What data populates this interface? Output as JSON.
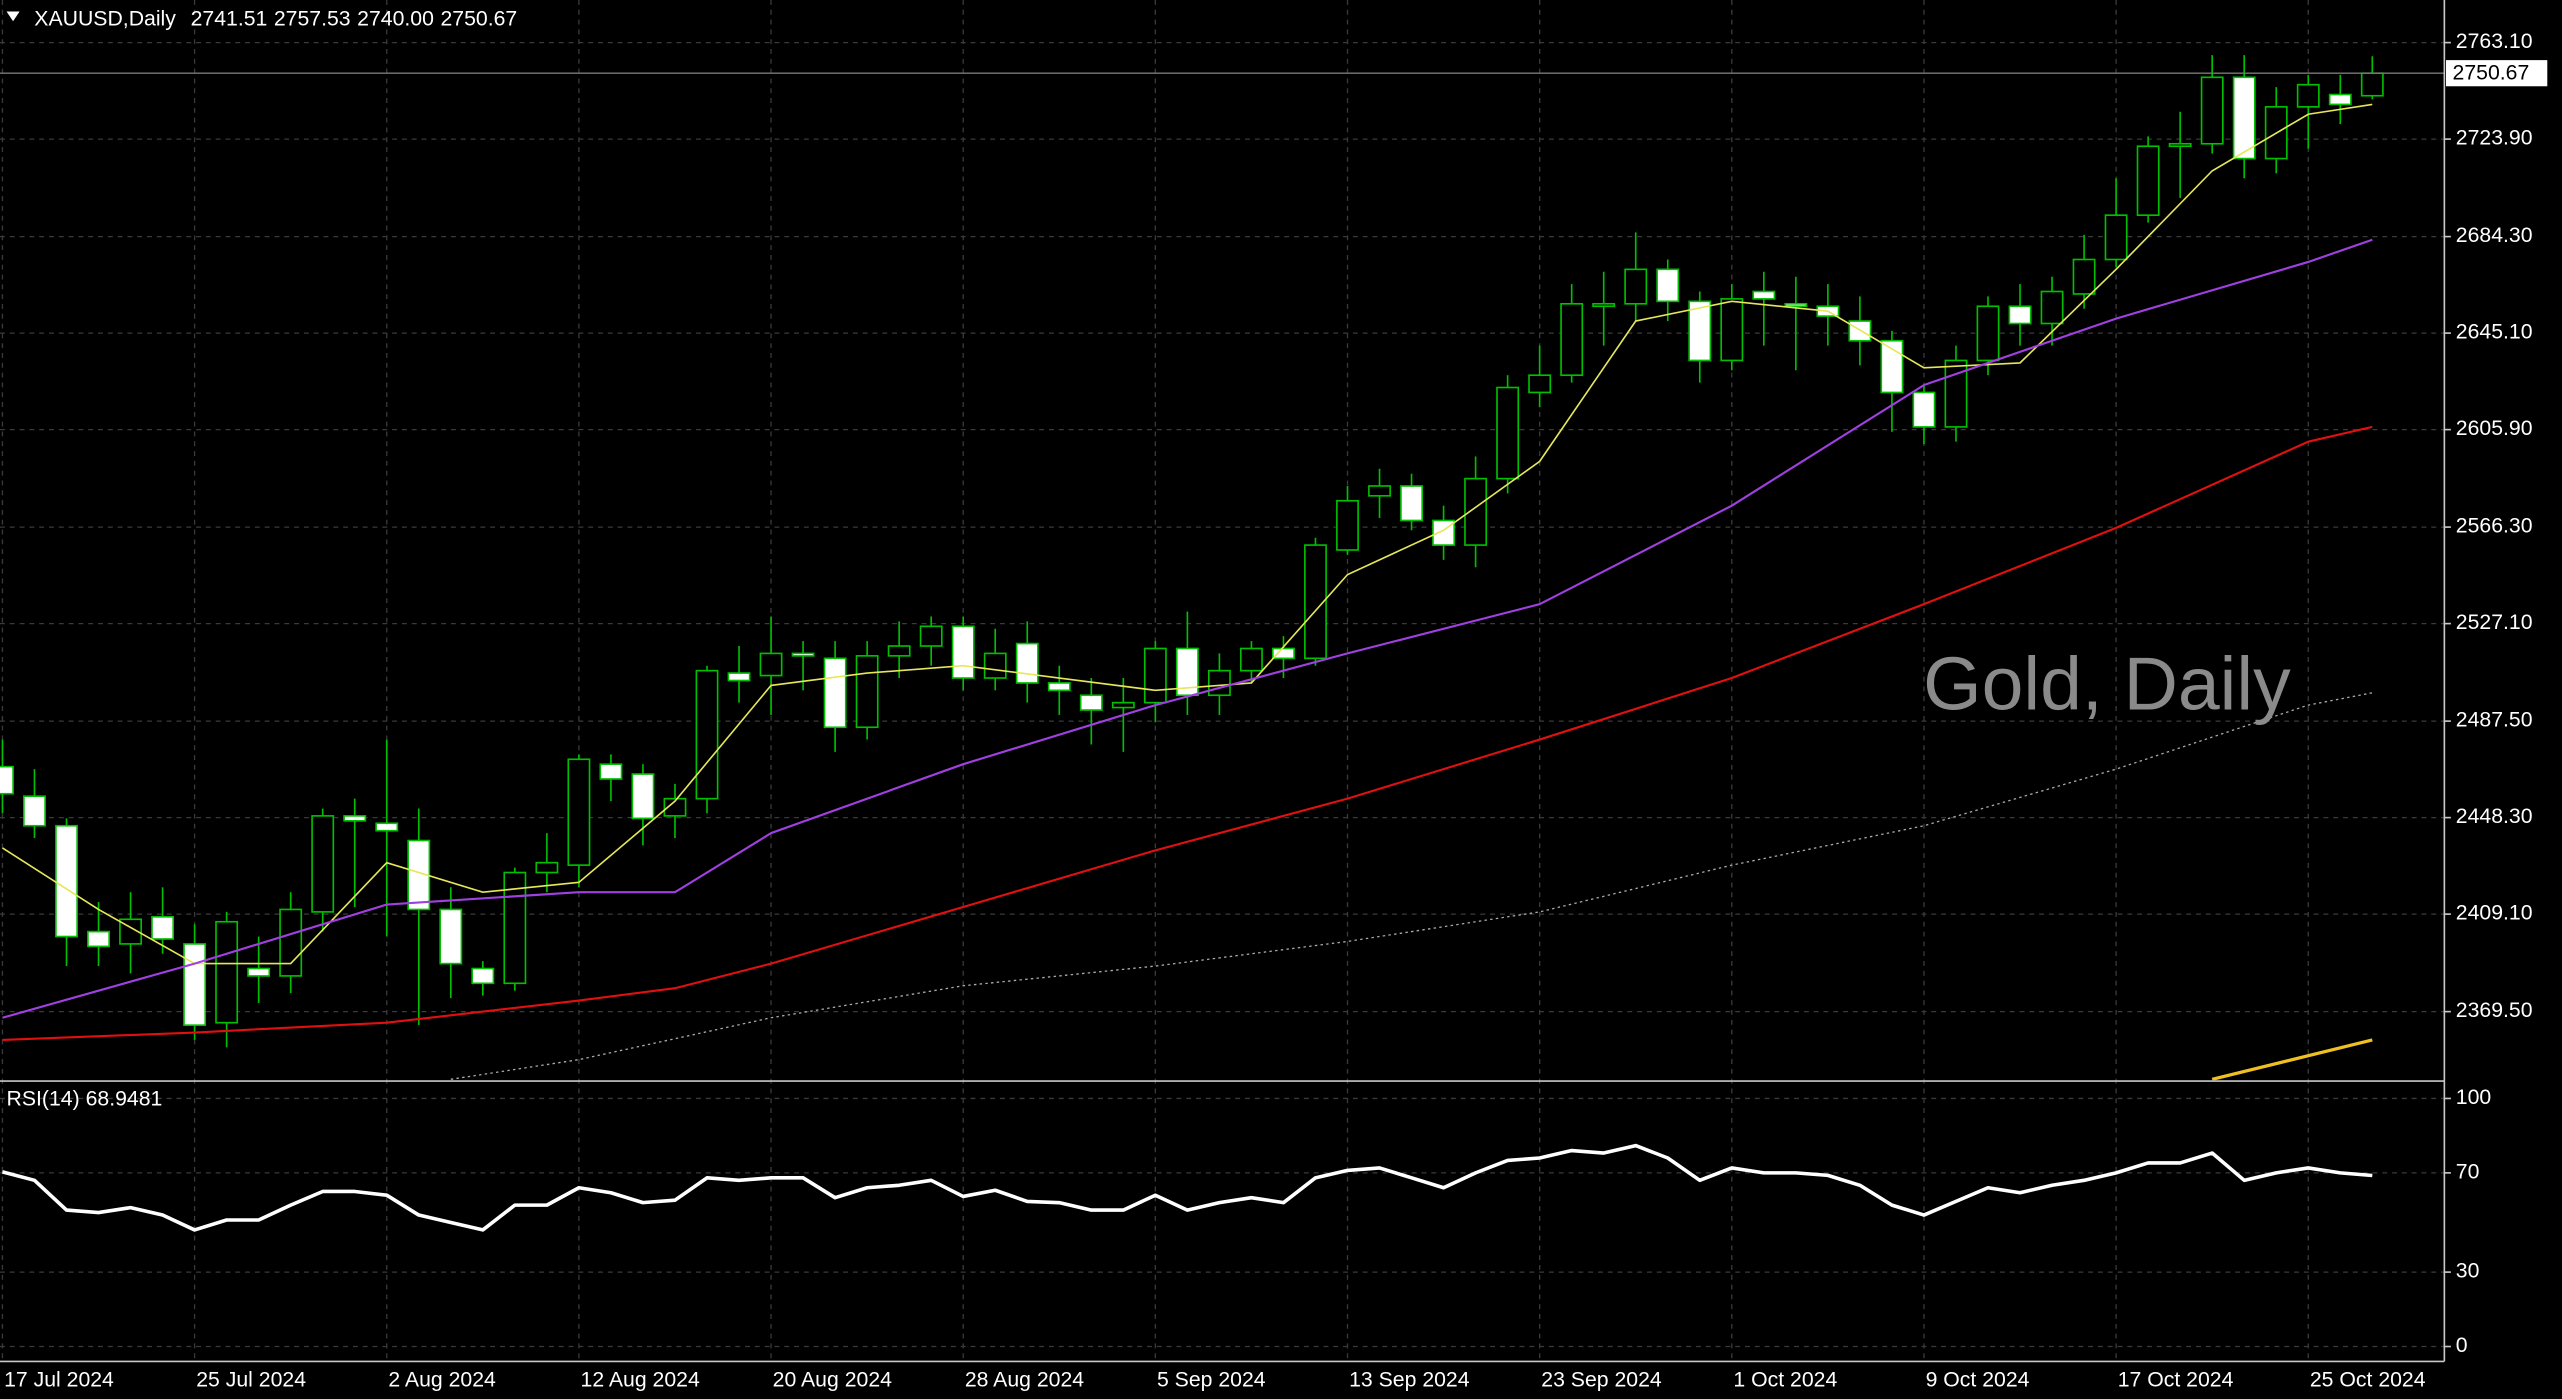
{
  "header": {
    "symbol": "XAUUSD,Daily",
    "ohlc": [
      "2741.51",
      "2757.53",
      "2740.00",
      "2750.67"
    ]
  },
  "watermark": "Gold, Daily",
  "chart_data": [
    {
      "type": "candlestick",
      "categories": [
        "17 Jul 2024",
        null,
        null,
        null,
        null,
        null,
        "25 Jul 2024",
        null,
        null,
        null,
        null,
        null,
        "2 Aug 2024",
        null,
        null,
        null,
        null,
        null,
        "12 Aug 2024",
        null,
        null,
        null,
        null,
        null,
        "20 Aug 2024",
        null,
        null,
        null,
        null,
        null,
        "28 Aug 2024",
        null,
        null,
        null,
        null,
        null,
        "5 Sep 2024",
        null,
        null,
        null,
        null,
        null,
        "13 Sep 2024",
        null,
        null,
        null,
        null,
        null,
        "23 Sep 2024",
        null,
        null,
        null,
        null,
        null,
        "1 Oct 2024",
        null,
        null,
        null,
        null,
        null,
        "9 Oct 2024",
        null,
        null,
        null,
        null,
        null,
        "17 Oct 2024",
        null,
        null,
        null,
        null,
        null,
        "25 Oct 2024",
        null,
        null
      ],
      "open": [
        2469,
        2457,
        2445,
        2402,
        2397,
        2408,
        2397,
        2365,
        2387,
        2384,
        2410,
        2449,
        2446,
        2439,
        2411,
        2387,
        2381,
        2426,
        2429,
        2470,
        2466,
        2449,
        2456,
        2507,
        2506,
        2515,
        2513,
        2485,
        2514,
        2518,
        2526,
        2505,
        2519,
        2503,
        2498,
        2493,
        2495,
        2517,
        2498,
        2508,
        2517,
        2513,
        2557,
        2579,
        2583,
        2569,
        2559,
        2586,
        2621,
        2628,
        2656,
        2657,
        2671,
        2658,
        2634,
        2662,
        2657,
        2656,
        2650,
        2642,
        2621,
        2607,
        2634,
        2656,
        2649,
        2661,
        2675,
        2693,
        2721,
        2722,
        2749,
        2716,
        2737,
        2742,
        2741.51
      ],
      "high": [
        2480,
        2468,
        2448,
        2414,
        2418,
        2420,
        2405,
        2410,
        2400,
        2418,
        2452,
        2456,
        2480,
        2452,
        2420,
        2390,
        2428,
        2442,
        2474,
        2474,
        2470,
        2462,
        2510,
        2518,
        2530,
        2520,
        2520,
        2520,
        2528,
        2530,
        2530,
        2525,
        2528,
        2510,
        2505,
        2505,
        2520,
        2532,
        2515,
        2520,
        2522,
        2562,
        2583,
        2590,
        2588,
        2575,
        2595,
        2628,
        2640,
        2665,
        2670,
        2686,
        2675,
        2662,
        2665,
        2670,
        2668,
        2665,
        2660,
        2646,
        2624,
        2640,
        2660,
        2665,
        2668,
        2685,
        2708,
        2725,
        2735,
        2758,
        2758,
        2745,
        2750,
        2750,
        2757.53
      ],
      "low": [
        2450,
        2440,
        2388,
        2388,
        2385,
        2393,
        2358,
        2355,
        2373,
        2377,
        2402,
        2412,
        2400,
        2364,
        2375,
        2376,
        2378,
        2418,
        2420,
        2455,
        2437,
        2440,
        2450,
        2495,
        2490,
        2500,
        2475,
        2480,
        2505,
        2510,
        2500,
        2500,
        2495,
        2490,
        2478,
        2475,
        2487,
        2490,
        2490,
        2503,
        2505,
        2510,
        2555,
        2570,
        2565,
        2553,
        2550,
        2580,
        2615,
        2625,
        2640,
        2650,
        2650,
        2625,
        2630,
        2640,
        2630,
        2640,
        2632,
        2605,
        2600,
        2601,
        2628,
        2640,
        2640,
        2655,
        2672,
        2690,
        2700,
        2718,
        2708,
        2710,
        2720,
        2730,
        2740.0
      ],
      "close": [
        2458,
        2445,
        2400,
        2396,
        2407,
        2399,
        2364,
        2406,
        2384,
        2411,
        2449,
        2447,
        2443,
        2411,
        2389,
        2381,
        2426,
        2430,
        2472,
        2464,
        2448,
        2456,
        2508,
        2504,
        2515,
        2514,
        2485,
        2514,
        2518,
        2526,
        2505,
        2515,
        2503,
        2500,
        2492,
        2495,
        2517,
        2498,
        2508,
        2517,
        2513,
        2559,
        2577,
        2583,
        2569,
        2559,
        2586,
        2623,
        2628,
        2657,
        2657,
        2671,
        2658,
        2634,
        2659,
        2659,
        2656,
        2652,
        2642,
        2621,
        2607,
        2634,
        2656,
        2649,
        2662,
        2675,
        2693,
        2721,
        2722,
        2749,
        2716,
        2737,
        2746,
        2738,
        2750.67
      ],
      "colors": {
        "wick": "#00c000",
        "up_fill": "#000000",
        "down_fill": "#ffffff"
      },
      "ylim": [
        2341.6,
        2780.4
      ],
      "yticks": [
        {
          "value": 2763.1,
          "label": "2763.10"
        },
        {
          "value": 2723.9,
          "label": "2723.90"
        },
        {
          "value": 2684.3,
          "label": "2684.30"
        },
        {
          "value": 2645.1,
          "label": "2645.10"
        },
        {
          "value": 2605.9,
          "label": "2605.90"
        },
        {
          "value": 2566.3,
          "label": "2566.30"
        },
        {
          "value": 2527.1,
          "label": "2527.10"
        },
        {
          "value": 2487.5,
          "label": "2487.50"
        },
        {
          "value": 2448.3,
          "label": "2448.30"
        },
        {
          "value": 2409.1,
          "label": "2409.10"
        },
        {
          "value": 2369.5,
          "label": "2369.50"
        }
      ],
      "current_price": {
        "value": 2750.67,
        "label": "2750.67"
      },
      "grid": true,
      "series": [
        {
          "color": "#e6e65a",
          "width": 1,
          "x": [
            0,
            3,
            6,
            9,
            12,
            15,
            18,
            21,
            24,
            27,
            30,
            33,
            36,
            39,
            42,
            45,
            48,
            51,
            54,
            57,
            60,
            63,
            66,
            69,
            72,
            74
          ],
          "values": [
            2436,
            2411,
            2389,
            2389,
            2430,
            2418,
            2422,
            2455,
            2502,
            2507,
            2510,
            2505,
            2500,
            2503,
            2547,
            2565,
            2593,
            2650,
            2658,
            2654,
            2631,
            2633,
            2671,
            2711,
            2734,
            2738
          ]
        },
        {
          "color": "#a040e0",
          "width": 1.3,
          "x": [
            0,
            6,
            12,
            18,
            21,
            24,
            30,
            36,
            42,
            48,
            54,
            60,
            66,
            72,
            74
          ],
          "values": [
            2367,
            2389,
            2413,
            2418,
            2418,
            2442,
            2470,
            2494,
            2515,
            2535,
            2575,
            2624,
            2651,
            2674,
            2683
          ]
        },
        {
          "color": "#e01010",
          "width": 1.3,
          "x": [
            0,
            6,
            12,
            18,
            21,
            24,
            30,
            36,
            42,
            48,
            54,
            60,
            66,
            72,
            74
          ],
          "values": [
            2358,
            2361,
            2365,
            2374,
            2379,
            2389,
            2412,
            2435,
            2456,
            2480,
            2505,
            2535,
            2566,
            2601,
            2607
          ]
        },
        {
          "color": "#aaaaaa",
          "width": 0.8,
          "style": "dotted",
          "x": [
            14,
            18,
            24,
            30,
            36,
            42,
            48,
            54,
            60,
            66,
            72,
            74
          ],
          "values": [
            2342,
            2350,
            2367,
            2380,
            2388,
            2398,
            2410,
            2429,
            2445,
            2468,
            2494,
            2499
          ]
        },
        {
          "color": "#f0c020",
          "width": 2,
          "x": [
            69,
            74
          ],
          "values": [
            2342,
            2358
          ]
        }
      ]
    },
    {
      "type": "line",
      "title": "RSI(14) 68.9481",
      "color": "#ffffff",
      "values": [
        70.4,
        67,
        55,
        54,
        56,
        53,
        47,
        51,
        51,
        57,
        62.5,
        62.5,
        61,
        53,
        50,
        47,
        57,
        57,
        64,
        62,
        58,
        59,
        68,
        67,
        68,
        68,
        60,
        64,
        65,
        67,
        60.5,
        63,
        58.5,
        58,
        55,
        55,
        61,
        55,
        58,
        60,
        58,
        68,
        71,
        72,
        68,
        64,
        70,
        75,
        76,
        79,
        78,
        81,
        76,
        67,
        72,
        70,
        70,
        69,
        65,
        57,
        53,
        58.5,
        64,
        62,
        65,
        67,
        70,
        74,
        74,
        78,
        67,
        70,
        72,
        70,
        68.9481
      ],
      "ylim": [
        -6,
        106
      ],
      "yticks": [
        100,
        70,
        30,
        0
      ],
      "grid": true
    }
  ]
}
